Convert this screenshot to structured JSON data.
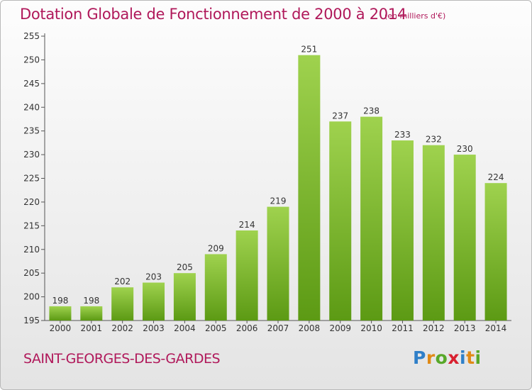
{
  "header": {
    "title": "Dotation Globale de Fonctionnement de 2000 à 2014",
    "subtitle": "(en milliers d'€)"
  },
  "footer": {
    "commune": "SAINT-GEORGES-DES-GARDES",
    "logo": {
      "p": "P",
      "r": "r",
      "o": "o",
      "x": "x",
      "i1": "i",
      "t": "t",
      "i2": "i"
    }
  },
  "colors": {
    "title": "#b0185a",
    "bar_top": "#9fd24e",
    "bar_bottom": "#5c9a14",
    "axis_text": "#333333"
  },
  "chart_data": {
    "type": "bar",
    "title": "Dotation Globale de Fonctionnement de 2000 à 2014",
    "categories": [
      "2000",
      "2001",
      "2002",
      "2003",
      "2004",
      "2005",
      "2006",
      "2007",
      "2008",
      "2009",
      "2010",
      "2011",
      "2012",
      "2013",
      "2014"
    ],
    "values": [
      198,
      198,
      202,
      203,
      205,
      209,
      214,
      219,
      251,
      237,
      238,
      233,
      232,
      230,
      224
    ],
    "ylim": [
      195,
      255
    ],
    "yticks": [
      195,
      200,
      205,
      210,
      215,
      220,
      225,
      230,
      235,
      240,
      245,
      250,
      255
    ],
    "grid": false,
    "data_labels": true
  }
}
